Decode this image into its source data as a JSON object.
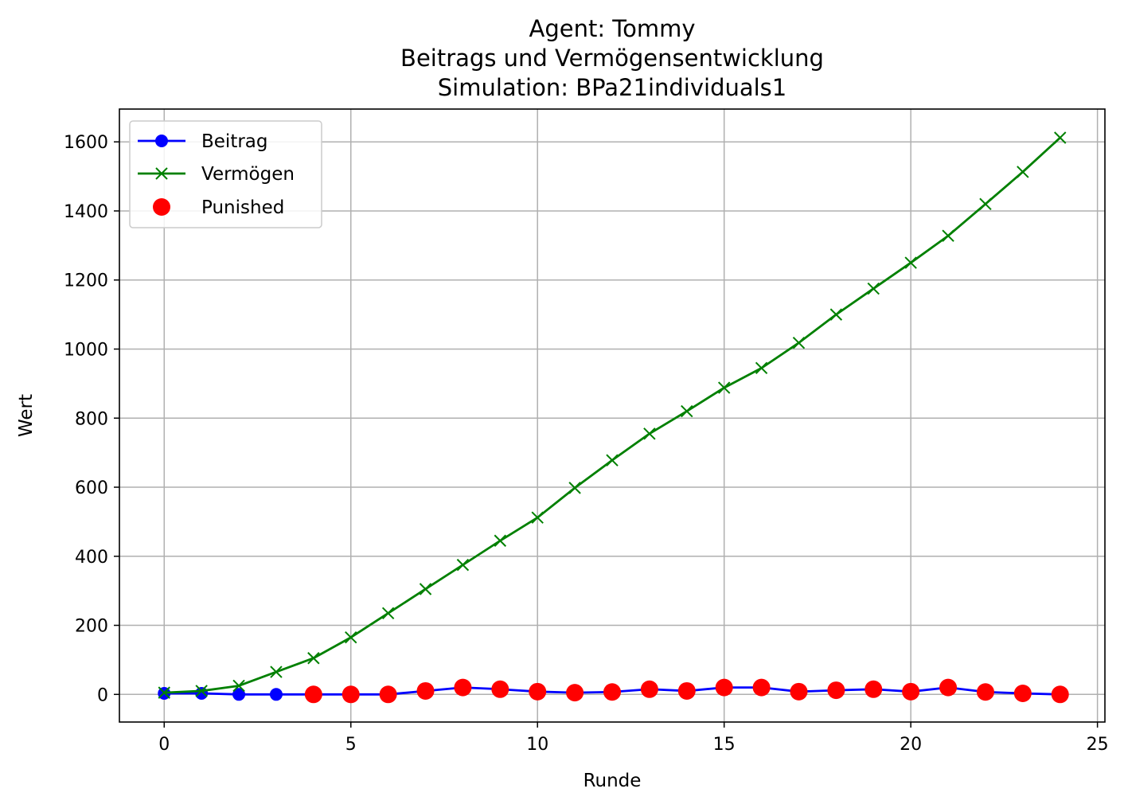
{
  "chart_data": {
    "type": "line",
    "title_lines": [
      "Agent: Tommy",
      "Beitrags und Vermögensentwicklung",
      "Simulation: BPa21individuals1"
    ],
    "xlabel": "Runde",
    "ylabel": "Wert",
    "xlim": [
      -1.2,
      25.2
    ],
    "ylim": [
      -80,
      1695
    ],
    "xticks": [
      0,
      5,
      10,
      15,
      20,
      25
    ],
    "yticks": [
      0,
      200,
      400,
      600,
      800,
      1000,
      1200,
      1400,
      1600
    ],
    "grid": true,
    "legend_position": "top-left",
    "x": [
      0,
      1,
      2,
      3,
      4,
      5,
      6,
      7,
      8,
      9,
      10,
      11,
      12,
      13,
      14,
      15,
      16,
      17,
      18,
      19,
      20,
      21,
      22,
      23,
      24
    ],
    "series": [
      {
        "name": "Beitrag",
        "color": "#0000ff",
        "marker": "circle",
        "values": [
          3,
          3,
          0,
          0,
          0,
          0,
          0,
          10,
          20,
          15,
          8,
          5,
          7,
          15,
          10,
          20,
          20,
          8,
          12,
          15,
          8,
          20,
          7,
          3,
          0
        ]
      },
      {
        "name": "Vermögen",
        "color": "#008000",
        "marker": "x",
        "values": [
          5,
          10,
          25,
          65,
          105,
          165,
          235,
          305,
          375,
          445,
          512,
          598,
          678,
          755,
          820,
          888,
          945,
          1018,
          1100,
          1175,
          1250,
          1328,
          1420,
          1513,
          1612
        ]
      }
    ],
    "punished": {
      "name": "Punished",
      "color": "#ff0000",
      "x": [
        4,
        5,
        6,
        7,
        8,
        9,
        10,
        11,
        12,
        13,
        14,
        15,
        16,
        17,
        18,
        19,
        20,
        21,
        22,
        23,
        24
      ],
      "y": [
        0,
        0,
        0,
        10,
        20,
        15,
        8,
        5,
        7,
        15,
        10,
        20,
        20,
        8,
        12,
        15,
        8,
        20,
        7,
        3,
        0
      ]
    }
  }
}
